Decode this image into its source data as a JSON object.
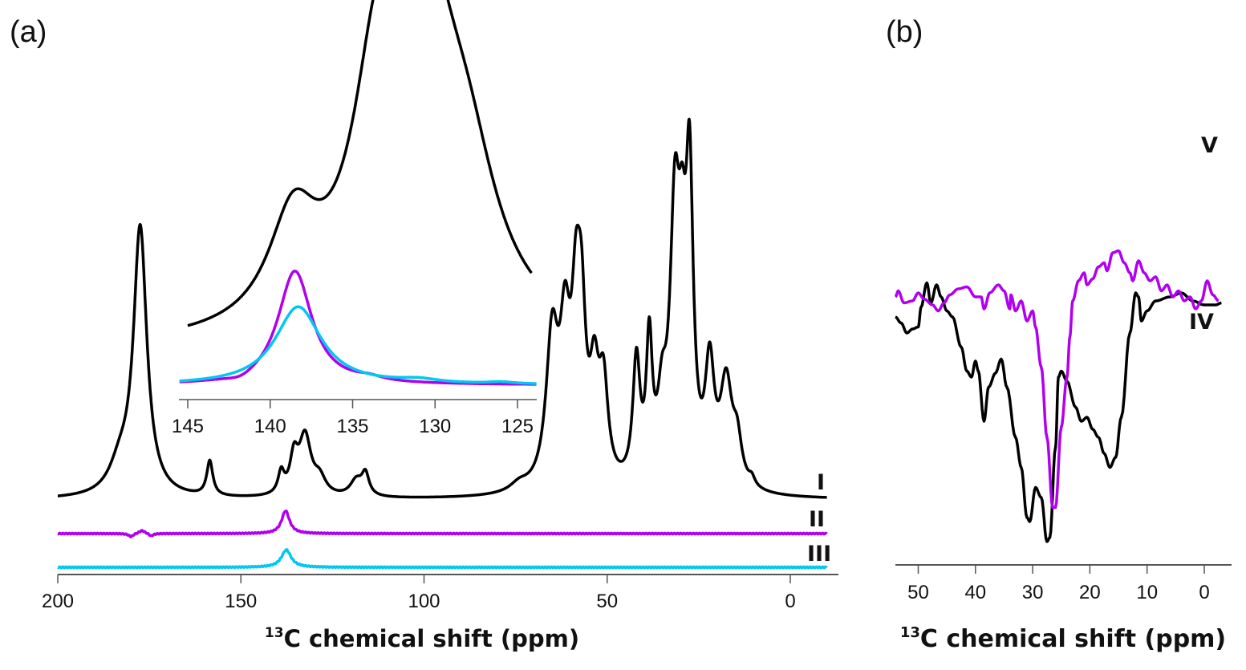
{
  "colors": {
    "I": "#000000",
    "II": "#b000f0",
    "III": "#00c8f0",
    "IV": "#000000",
    "V": "#b000f0",
    "axis": "#555555"
  },
  "chart_data": [
    {
      "panel": "(a)",
      "type": "line",
      "xlabel_sup": "13",
      "xlabel": "C chemical shift (ppm)",
      "xlim": [
        200,
        -10
      ],
      "x_reversed": true,
      "xticks": [
        200,
        150,
        100,
        50,
        0
      ],
      "xtick_labels": [
        "200",
        "150",
        "100",
        "50",
        "0"
      ],
      "grid": false,
      "series": [
        {
          "name": "I",
          "color_key": "I",
          "offset": 0,
          "peaks": [
            {
              "c": 183,
              "h": 0.1,
              "w": 3.5
            },
            {
              "c": 177.5,
              "h": 1.0,
              "w": 2.2
            },
            {
              "c": 158.5,
              "h": 0.13,
              "w": 1.0
            },
            {
              "c": 139,
              "h": 0.08,
              "w": 1.0
            },
            {
              "c": 135.5,
              "h": 0.13,
              "w": 1.3
            },
            {
              "c": 132.5,
              "h": 0.22,
              "w": 2.0
            },
            {
              "c": 128.5,
              "h": 0.06,
              "w": 2.0
            },
            {
              "c": 118.5,
              "h": 0.06,
              "w": 2.0
            },
            {
              "c": 116,
              "h": 0.08,
              "w": 1.2
            },
            {
              "c": 74,
              "h": 0.03,
              "w": 3
            },
            {
              "c": 65,
              "h": 0.55,
              "w": 2.0
            },
            {
              "c": 61.5,
              "h": 0.5,
              "w": 1.7
            },
            {
              "c": 58.5,
              "h": 0.55,
              "w": 1.5
            },
            {
              "c": 57,
              "h": 0.5,
              "w": 1.4
            },
            {
              "c": 53.5,
              "h": 0.35,
              "w": 1.5
            },
            {
              "c": 51,
              "h": 0.35,
              "w": 1.5
            },
            {
              "c": 42,
              "h": 0.45,
              "w": 1.2
            },
            {
              "c": 38.5,
              "h": 0.5,
              "w": 1.0
            },
            {
              "c": 35,
              "h": 0.25,
              "w": 1.5
            },
            {
              "c": 31.5,
              "h": 0.95,
              "w": 1.6
            },
            {
              "c": 29.5,
              "h": 0.55,
              "w": 1.3
            },
            {
              "c": 27.5,
              "h": 1.05,
              "w": 1.2
            },
            {
              "c": 22,
              "h": 0.42,
              "w": 1.5
            },
            {
              "c": 17.5,
              "h": 0.38,
              "w": 2.0
            },
            {
              "c": 14.5,
              "h": 0.15,
              "w": 1.5
            },
            {
              "c": 10.5,
              "h": 0.03,
              "w": 1.0
            }
          ]
        },
        {
          "name": "II",
          "color_key": "II",
          "offset": 1,
          "peaks": [
            {
              "c": 137.8,
              "h": 0.085,
              "w": 1.3
            },
            {
              "c": 180,
              "h": -0.012,
              "w": 0.8
            },
            {
              "c": 177,
              "h": 0.012,
              "w": 1.0
            },
            {
              "c": 174.5,
              "h": -0.01,
              "w": 0.7
            }
          ]
        },
        {
          "name": "III",
          "color_key": "III",
          "offset": 2,
          "peaks": [
            {
              "c": 137.6,
              "h": 0.065,
              "w": 1.6
            }
          ]
        }
      ],
      "series_labels": [
        "I",
        "II",
        "III"
      ],
      "inset": {
        "xlim": [
          145.5,
          123.8
        ],
        "xticks": [
          145,
          140,
          135,
          130,
          125
        ],
        "xtick_labels": [
          "145",
          "140",
          "135",
          "130",
          "125"
        ],
        "series": [
          {
            "name": "I (expanded)",
            "color_key": "I",
            "peaks": [
              {
                "c": 138.6,
                "h": 0.3,
                "w": 1.8
              },
              {
                "c": 133.5,
                "h": 0.55,
                "w": 1.8
              },
              {
                "c": 130.8,
                "h": 0.98,
                "w": 2.6
              },
              {
                "c": 128.0,
                "h": 0.3,
                "w": 2.2
              }
            ]
          },
          {
            "name": "II (expanded)",
            "color_key": "II",
            "peaks": [
              {
                "c": 138.5,
                "h": 0.95,
                "w": 1.25
              },
              {
                "c": 141.8,
                "h": -0.04,
                "w": 1.0
              },
              {
                "c": 134.0,
                "h": 0.03,
                "w": 1.0
              }
            ]
          },
          {
            "name": "III (expanded)",
            "color_key": "III",
            "peaks": [
              {
                "c": 138.3,
                "h": 0.65,
                "w": 1.7
              },
              {
                "c": 131.0,
                "h": 0.03,
                "w": 1.5
              },
              {
                "c": 126.0,
                "h": 0.015,
                "w": 1.0
              }
            ]
          }
        ]
      }
    },
    {
      "panel": "(b)",
      "type": "line",
      "xlabel_sup": "13",
      "xlabel": "C chemical shift (ppm)",
      "xlim": [
        54,
        -4.7
      ],
      "x_reversed": true,
      "xticks": [
        50,
        40,
        30,
        20,
        10,
        0
      ],
      "xtick_labels": [
        "50",
        "40",
        "30",
        "20",
        "10",
        "0"
      ],
      "grid": false,
      "series": [
        {
          "name": "IV",
          "color_key": "IV",
          "points_ppm": [
            [
              54,
              0.3
            ],
            [
              53,
              0.27
            ],
            [
              52,
              0.22
            ],
            [
              51,
              0.24
            ],
            [
              50,
              0.25
            ],
            [
              49.5,
              0.35
            ],
            [
              48.5,
              0.47
            ],
            [
              47.8,
              0.37
            ],
            [
              46.8,
              0.46
            ],
            [
              46,
              0.4
            ],
            [
              45,
              0.33
            ],
            [
              44,
              0.3
            ],
            [
              42.5,
              0.15
            ],
            [
              41.5,
              0.03
            ],
            [
              40.7,
              0.0
            ],
            [
              40,
              0.08
            ],
            [
              39.5,
              0.03
            ],
            [
              38.5,
              -0.22
            ],
            [
              37.7,
              -0.05
            ],
            [
              36.5,
              0.02
            ],
            [
              35.5,
              0.09
            ],
            [
              34.5,
              -0.05
            ],
            [
              33,
              -0.3
            ],
            [
              32,
              -0.45
            ],
            [
              31,
              -0.7
            ],
            [
              30.5,
              -0.72
            ],
            [
              29.5,
              -0.55
            ],
            [
              28.5,
              -0.6
            ],
            [
              27.5,
              -0.82
            ],
            [
              27,
              -0.8
            ],
            [
              26,
              -0.35
            ],
            [
              25.5,
              0.0
            ],
            [
              25,
              0.03
            ],
            [
              24,
              -0.02
            ],
            [
              22.5,
              -0.15
            ],
            [
              21.5,
              -0.22
            ],
            [
              20.5,
              -0.2
            ],
            [
              19.5,
              -0.26
            ],
            [
              18.5,
              -0.3
            ],
            [
              17.5,
              -0.38
            ],
            [
              16.5,
              -0.45
            ],
            [
              15.5,
              -0.4
            ],
            [
              14.5,
              -0.2
            ],
            [
              13,
              0.22
            ],
            [
              12,
              0.42
            ],
            [
              11.5,
              0.4
            ],
            [
              11,
              0.28
            ],
            [
              10,
              0.33
            ],
            [
              8.5,
              0.38
            ],
            [
              6,
              0.4
            ],
            [
              4,
              0.42
            ],
            [
              2,
              0.38
            ],
            [
              0,
              0.36
            ],
            [
              -2,
              0.36
            ],
            [
              -3,
              0.37
            ]
          ]
        },
        {
          "name": "V",
          "color_key": "V",
          "points_ppm": [
            [
              54,
              0.4
            ],
            [
              53.5,
              0.43
            ],
            [
              52.5,
              0.37
            ],
            [
              51,
              0.38
            ],
            [
              50,
              0.42
            ],
            [
              49,
              0.39
            ],
            [
              47.5,
              0.36
            ],
            [
              46.5,
              0.33
            ],
            [
              45.5,
              0.37
            ],
            [
              44.5,
              0.41
            ],
            [
              43,
              0.44
            ],
            [
              41.5,
              0.45
            ],
            [
              40,
              0.4
            ],
            [
              39,
              0.4
            ],
            [
              38.5,
              0.34
            ],
            [
              37.5,
              0.42
            ],
            [
              36,
              0.46
            ],
            [
              35,
              0.43
            ],
            [
              34,
              0.34
            ],
            [
              33.8,
              0.41
            ],
            [
              33,
              0.33
            ],
            [
              32,
              0.38
            ],
            [
              31,
              0.28
            ],
            [
              30,
              0.33
            ],
            [
              29.5,
              0.25
            ],
            [
              28.5,
              0.05
            ],
            [
              27.5,
              -0.3
            ],
            [
              26.5,
              -0.65
            ],
            [
              26,
              -0.65
            ],
            [
              25,
              -0.25
            ],
            [
              24,
              0.0
            ],
            [
              23.5,
              0.2
            ],
            [
              23,
              0.38
            ],
            [
              22,
              0.48
            ],
            [
              21,
              0.52
            ],
            [
              20.5,
              0.46
            ],
            [
              19.5,
              0.49
            ],
            [
              18.5,
              0.55
            ],
            [
              17.5,
              0.57
            ],
            [
              17,
              0.53
            ],
            [
              16,
              0.62
            ],
            [
              15,
              0.63
            ],
            [
              14,
              0.57
            ],
            [
              13,
              0.52
            ],
            [
              12.5,
              0.48
            ],
            [
              11.5,
              0.58
            ],
            [
              10.5,
              0.52
            ],
            [
              9.5,
              0.48
            ],
            [
              8.5,
              0.5
            ],
            [
              7.5,
              0.43
            ],
            [
              6.5,
              0.46
            ],
            [
              5.5,
              0.4
            ],
            [
              4.5,
              0.43
            ],
            [
              3.5,
              0.38
            ],
            [
              2.5,
              0.4
            ],
            [
              1.5,
              0.34
            ],
            [
              0.5,
              0.38
            ],
            [
              -0.5,
              0.48
            ],
            [
              -1.5,
              0.41
            ],
            [
              -2.5,
              0.38
            ]
          ]
        }
      ],
      "series_labels": [
        "IV",
        "V"
      ]
    }
  ]
}
